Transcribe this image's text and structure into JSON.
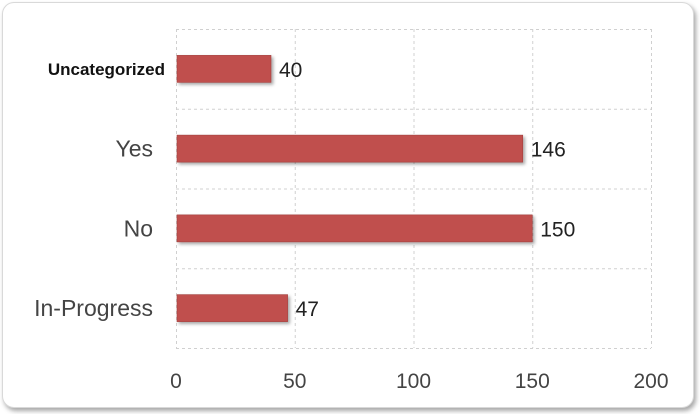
{
  "chart_data": {
    "type": "bar",
    "orientation": "horizontal",
    "categories": [
      "Uncategorized",
      "Yes",
      "No",
      "In-Progress"
    ],
    "values": [
      40,
      146,
      150,
      47
    ],
    "data_labels": [
      "40",
      "146",
      "150",
      "47"
    ],
    "xlim": [
      0,
      200
    ],
    "xticks": [
      0,
      50,
      100,
      150,
      200
    ],
    "xtick_labels": [
      "0",
      "50",
      "100",
      "150",
      "200"
    ],
    "grid": true,
    "legend": "none",
    "bar_color": "#c0504d",
    "bar_edge_color": "#a33f3c"
  }
}
